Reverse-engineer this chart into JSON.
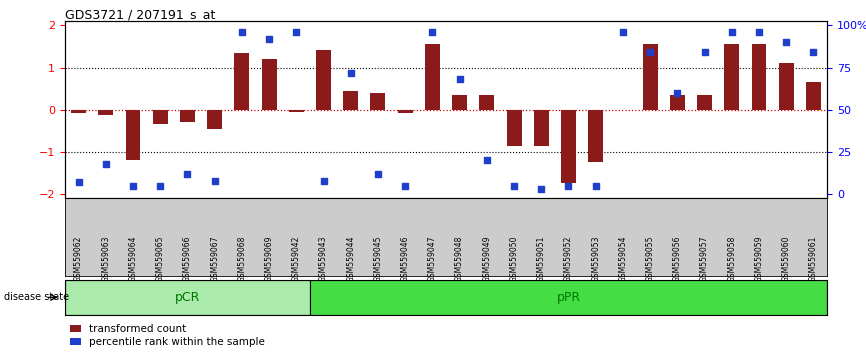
{
  "title": "GDS3721 / 207191_s_at",
  "samples": [
    "GSM559062",
    "GSM559063",
    "GSM559064",
    "GSM559065",
    "GSM559066",
    "GSM559067",
    "GSM559068",
    "GSM559069",
    "GSM559042",
    "GSM559043",
    "GSM559044",
    "GSM559045",
    "GSM559046",
    "GSM559047",
    "GSM559048",
    "GSM559049",
    "GSM559050",
    "GSM559051",
    "GSM559052",
    "GSM559053",
    "GSM559054",
    "GSM559055",
    "GSM559056",
    "GSM559057",
    "GSM559058",
    "GSM559059",
    "GSM559060",
    "GSM559061"
  ],
  "bar_values": [
    -0.08,
    -0.13,
    -1.2,
    -0.35,
    -0.28,
    -0.45,
    1.35,
    1.2,
    -0.05,
    1.42,
    0.45,
    0.4,
    -0.08,
    1.55,
    0.35,
    0.35,
    -0.85,
    -0.85,
    -1.75,
    -1.25,
    0.0,
    1.55,
    0.35,
    0.35,
    1.55,
    1.55,
    1.1,
    0.65
  ],
  "dot_values": [
    7,
    18,
    5,
    5,
    12,
    8,
    96,
    92,
    96,
    8,
    72,
    12,
    5,
    96,
    68,
    20,
    5,
    3,
    5,
    5,
    96,
    84,
    60,
    84,
    96,
    96,
    90,
    84
  ],
  "pCR_count": 9,
  "pPR_count": 19,
  "ylim": [
    -2.1,
    2.1
  ],
  "yticks": [
    -2,
    -1,
    0,
    1,
    2
  ],
  "right_yticks": [
    0,
    25,
    50,
    75,
    100
  ],
  "right_ytick_labels": [
    "0",
    "25",
    "50",
    "75",
    "100%"
  ],
  "bar_color": "#8B1A1A",
  "dot_color": "#1E3ECC",
  "pCR_color": "#AAEAAA",
  "pPR_color": "#44DD44",
  "tick_bg_color": "#CCCCCC",
  "label_color": "#007700",
  "zero_line_color": "#CC0000",
  "dotted_line_color": "#000000",
  "legend_bar_label": "transformed count",
  "legend_dot_label": "percentile rank within the sample",
  "disease_state_label": "disease state"
}
